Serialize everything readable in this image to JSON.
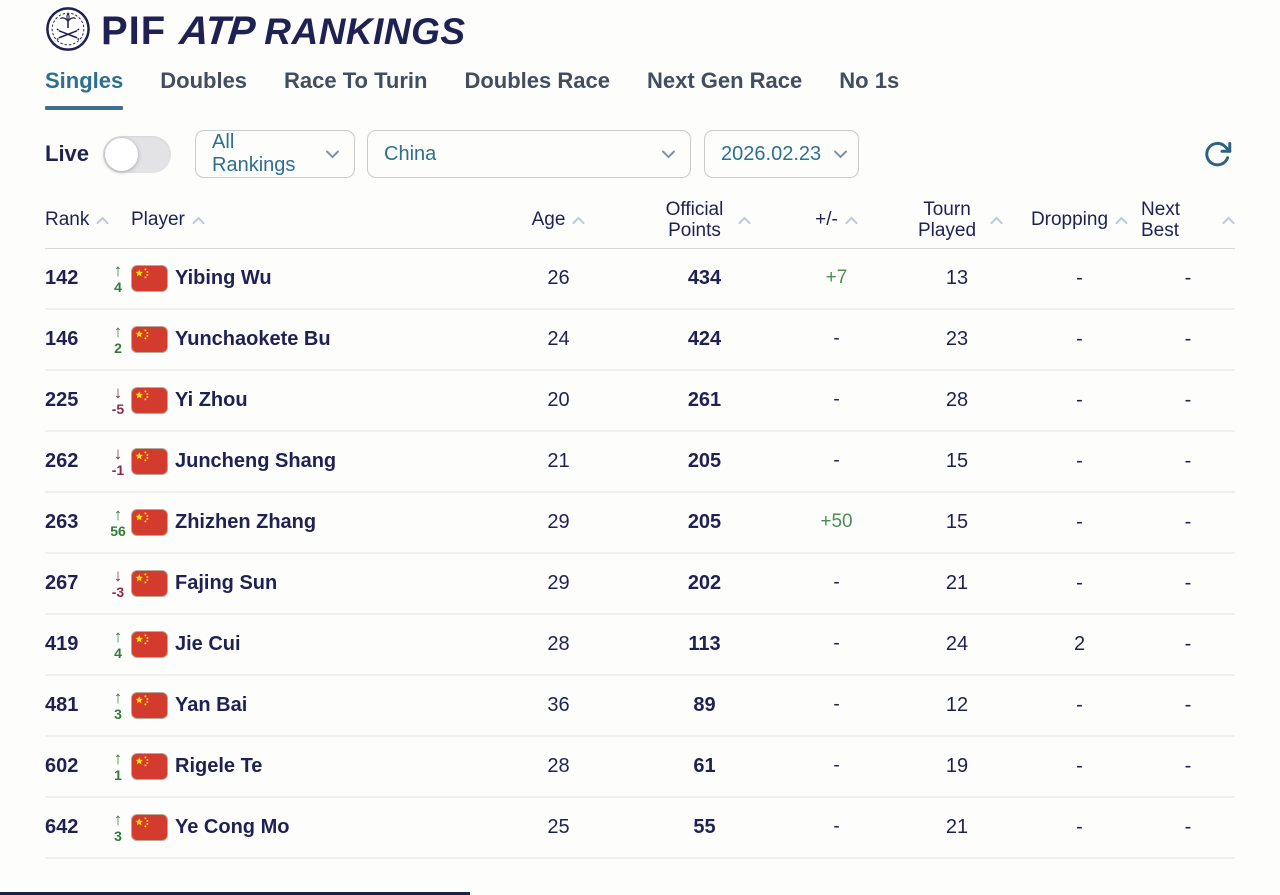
{
  "header": {
    "pif": "PIF",
    "atp": "ATP",
    "rankings": "RANKINGS"
  },
  "tabs": [
    {
      "label": "Singles",
      "active": true
    },
    {
      "label": "Doubles",
      "active": false
    },
    {
      "label": "Race To Turin",
      "active": false
    },
    {
      "label": "Doubles Race",
      "active": false
    },
    {
      "label": "Next Gen Race",
      "active": false
    },
    {
      "label": "No 1s",
      "active": false
    }
  ],
  "filters": {
    "live_label": "Live",
    "live_on": false,
    "ranking_type": "All Rankings",
    "country": "China",
    "date": "2026.02.23"
  },
  "table": {
    "columns": [
      {
        "label": "Rank"
      },
      {
        "label": "Player"
      },
      {
        "label": "Age"
      },
      {
        "label": "Official Points"
      },
      {
        "label": "+/-"
      },
      {
        "label": "Tourn Played"
      },
      {
        "label": "Dropping"
      },
      {
        "label": "Next Best"
      }
    ],
    "rows": [
      {
        "rank": "142",
        "move_dir": "up",
        "move_val": "4",
        "country": "China",
        "player": "Yibing Wu",
        "age": "26",
        "points": "434",
        "plus_minus": "+7",
        "tourn": "13",
        "dropping": "-",
        "next_best": "-"
      },
      {
        "rank": "146",
        "move_dir": "up",
        "move_val": "2",
        "country": "China",
        "player": "Yunchaokete Bu",
        "age": "24",
        "points": "424",
        "plus_minus": "-",
        "tourn": "23",
        "dropping": "-",
        "next_best": "-"
      },
      {
        "rank": "225",
        "move_dir": "down",
        "move_val": "-5",
        "country": "China",
        "player": "Yi Zhou",
        "age": "20",
        "points": "261",
        "plus_minus": "-",
        "tourn": "28",
        "dropping": "-",
        "next_best": "-"
      },
      {
        "rank": "262",
        "move_dir": "down",
        "move_val": "-1",
        "country": "China",
        "player": "Juncheng Shang",
        "age": "21",
        "points": "205",
        "plus_minus": "-",
        "tourn": "15",
        "dropping": "-",
        "next_best": "-"
      },
      {
        "rank": "263",
        "move_dir": "up",
        "move_val": "56",
        "country": "China",
        "player": "Zhizhen Zhang",
        "age": "29",
        "points": "205",
        "plus_minus": "+50",
        "tourn": "15",
        "dropping": "-",
        "next_best": "-"
      },
      {
        "rank": "267",
        "move_dir": "down",
        "move_val": "-3",
        "country": "China",
        "player": "Fajing Sun",
        "age": "29",
        "points": "202",
        "plus_minus": "-",
        "tourn": "21",
        "dropping": "-",
        "next_best": "-"
      },
      {
        "rank": "419",
        "move_dir": "up",
        "move_val": "4",
        "country": "China",
        "player": "Jie Cui",
        "age": "28",
        "points": "113",
        "plus_minus": "-",
        "tourn": "24",
        "dropping": "2",
        "next_best": "-"
      },
      {
        "rank": "481",
        "move_dir": "up",
        "move_val": "3",
        "country": "China",
        "player": "Yan Bai",
        "age": "36",
        "points": "89",
        "plus_minus": "-",
        "tourn": "12",
        "dropping": "-",
        "next_best": "-"
      },
      {
        "rank": "602",
        "move_dir": "up",
        "move_val": "1",
        "country": "China",
        "player": "Rigele Te",
        "age": "28",
        "points": "61",
        "plus_minus": "-",
        "tourn": "19",
        "dropping": "-",
        "next_best": "-"
      },
      {
        "rank": "642",
        "move_dir": "up",
        "move_val": "3",
        "country": "China",
        "player": "Ye Cong Mo",
        "age": "25",
        "points": "55",
        "plus_minus": "-",
        "tourn": "21",
        "dropping": "-",
        "next_best": "-"
      }
    ]
  },
  "icons": {
    "refresh": "refresh-icon",
    "sort": "chevron-up-icon",
    "select_chevron": "chevron-down-icon",
    "flag": "china-flag-icon",
    "up_arrow": "↑",
    "down_arrow": "↓"
  },
  "colors": {
    "navy": "#1f2152",
    "accent_teal": "#2e6f8e",
    "green_up": "#2f7d35",
    "green_value": "#4d8c55",
    "red_down": "#8d2a45",
    "flag_red": "#d23b2d",
    "flag_yellow": "#ffde00"
  }
}
